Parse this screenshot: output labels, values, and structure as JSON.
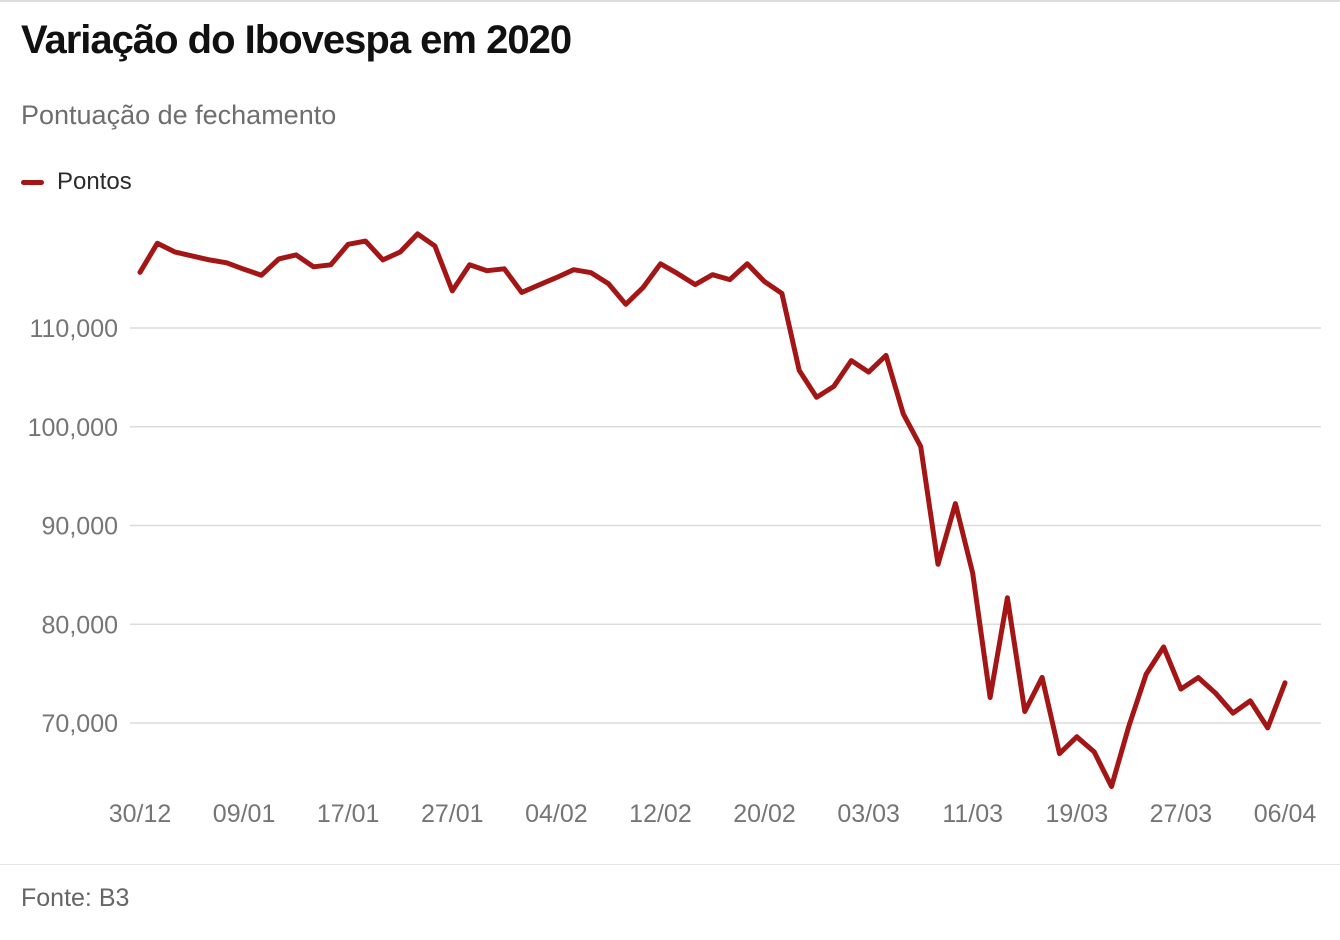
{
  "header": {
    "title": "Variação do Ibovespa em 2020",
    "subtitle": "Pontuação de fechamento"
  },
  "legend": {
    "label": "Pontos",
    "color": "#a41515"
  },
  "source": {
    "label": "Fonte: B3"
  },
  "colors": {
    "line": "#a41515",
    "gridline": "#dcdcdc",
    "axis_text": "#757575",
    "title_text": "#111111",
    "subtitle_text": "#6e6e6e",
    "source_text": "#666666"
  },
  "chart_data": {
    "type": "line",
    "title": "Variação do Ibovespa em 2020",
    "subtitle": "Pontuação de fechamento",
    "xlabel": "",
    "ylabel": "Pontos",
    "grid": true,
    "legend_position": "top-left",
    "x": [
      "30/12",
      "02/01",
      "03/01",
      "06/01",
      "07/01",
      "08/01",
      "09/01",
      "10/01",
      "13/01",
      "14/01",
      "15/01",
      "16/01",
      "17/01",
      "20/01",
      "21/01",
      "22/01",
      "23/01",
      "24/01",
      "27/01",
      "28/01",
      "29/01",
      "30/01",
      "31/01",
      "03/02",
      "04/02",
      "05/02",
      "06/02",
      "07/02",
      "10/02",
      "11/02",
      "12/02",
      "13/02",
      "14/02",
      "17/02",
      "18/02",
      "19/02",
      "20/02",
      "21/02",
      "26/02",
      "27/02",
      "28/02",
      "02/03",
      "03/03",
      "04/03",
      "05/03",
      "06/03",
      "09/03",
      "10/03",
      "11/03",
      "12/03",
      "13/03",
      "16/03",
      "17/03",
      "18/03",
      "19/03",
      "20/03",
      "23/03",
      "24/03",
      "25/03",
      "26/03",
      "27/03",
      "30/03",
      "31/03",
      "01/04",
      "02/04",
      "03/04",
      "06/04"
    ],
    "series": [
      {
        "name": "Pontos",
        "values": [
          115645,
          118573,
          117707,
          117300,
          116900,
          116600,
          115947,
          115350,
          117000,
          117400,
          116200,
          116400,
          118478,
          118800,
          116900,
          117700,
          119528,
          118300,
          113761,
          116400,
          115800,
          116000,
          113600,
          114360,
          115100,
          115900,
          115600,
          114500,
          112400,
          114100,
          116500,
          115500,
          114400,
          115400,
          114900,
          116500,
          114700,
          113500,
          105718,
          102985,
          104100,
          106700,
          105537,
          107224,
          101300,
          97996,
          86067,
          92214,
          85171,
          72583,
          82678,
          71168,
          74621,
          66900,
          68600,
          67069,
          63570,
          69700,
          74950,
          77700,
          73428,
          74600,
          73019,
          71000,
          72250,
          69500,
          74073
        ]
      }
    ],
    "x_tick_labels": [
      "30/12",
      "09/01",
      "17/01",
      "27/01",
      "04/02",
      "12/02",
      "20/02",
      "03/03",
      "11/03",
      "19/03",
      "27/03",
      "06/04"
    ],
    "x_tick_every": 6,
    "y_ticks": [
      70000,
      80000,
      90000,
      100000,
      110000
    ],
    "y_tick_labels": [
      "70,000",
      "80,000",
      "90,000",
      "100,000",
      "110,000"
    ],
    "ylim": [
      62500,
      121000
    ]
  }
}
